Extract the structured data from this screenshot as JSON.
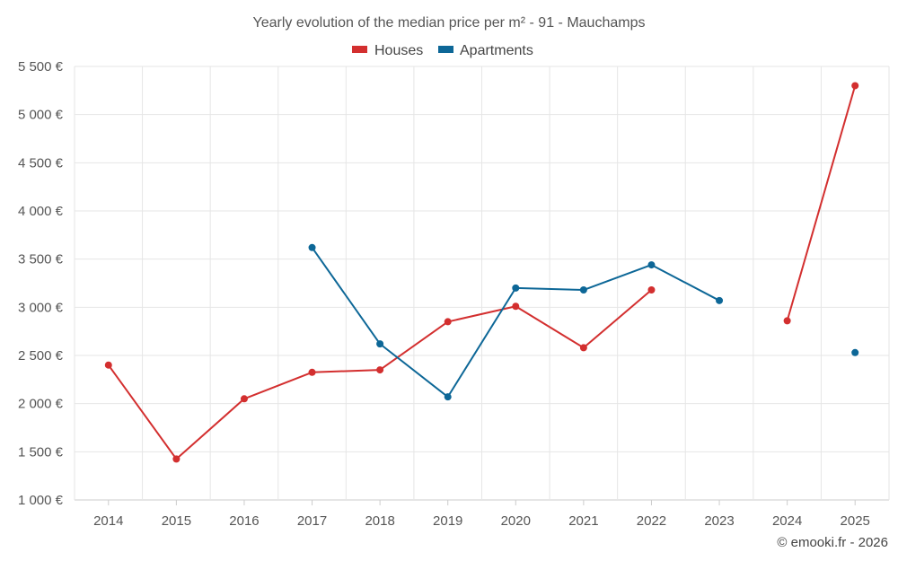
{
  "chart_data": {
    "type": "line",
    "title": "Yearly evolution of the median price per m² - 91 - Mauchamps",
    "categories": [
      "2014",
      "2015",
      "2016",
      "2017",
      "2018",
      "2019",
      "2020",
      "2021",
      "2022",
      "2023",
      "2024",
      "2025"
    ],
    "series": [
      {
        "name": "Houses",
        "color": "#d32f2f",
        "values": [
          2400,
          1425,
          2050,
          2325,
          2350,
          2850,
          3010,
          2580,
          3180,
          null,
          2860,
          5300
        ]
      },
      {
        "name": "Apartments",
        "color": "#0d6797",
        "values": [
          null,
          null,
          null,
          3620,
          2620,
          2070,
          3200,
          3180,
          3440,
          3070,
          null,
          2530
        ]
      }
    ],
    "ylim": [
      1000,
      5500
    ],
    "yticks": [
      1000,
      1500,
      2000,
      2500,
      3000,
      3500,
      4000,
      4500,
      5000,
      5500
    ],
    "ytick_labels": [
      "1 000 €",
      "1 500 €",
      "2 000 €",
      "2 500 €",
      "3 000 €",
      "3 500 €",
      "4 000 €",
      "4 500 €",
      "5 000 €",
      "5 500 €"
    ],
    "xlabel": "",
    "ylabel": "",
    "grid": true,
    "legend": "top-center"
  },
  "credit": "© emooki.fr - 2026"
}
